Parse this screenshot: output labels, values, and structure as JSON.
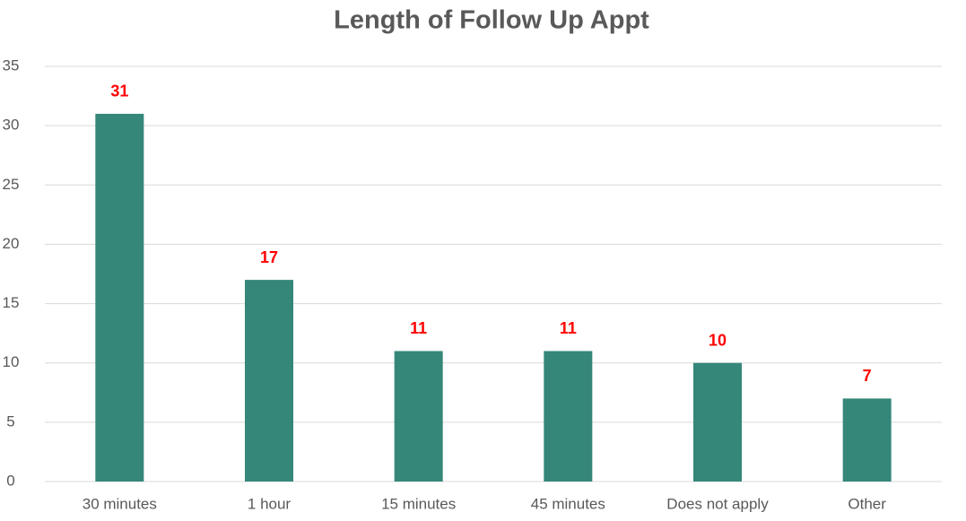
{
  "chart_data": {
    "type": "bar",
    "title": "Length of Follow Up Appt",
    "categories": [
      "30 minutes",
      "1 hour",
      "15 minutes",
      "45 minutes",
      "Does not apply",
      "Other"
    ],
    "values": [
      31,
      17,
      11,
      11,
      10,
      7
    ],
    "color": "#358779",
    "value_label_color": "#ff0000",
    "ylim": [
      0,
      35
    ],
    "yticks": [
      0,
      5,
      10,
      15,
      20,
      25,
      30,
      35
    ],
    "grid": true
  }
}
